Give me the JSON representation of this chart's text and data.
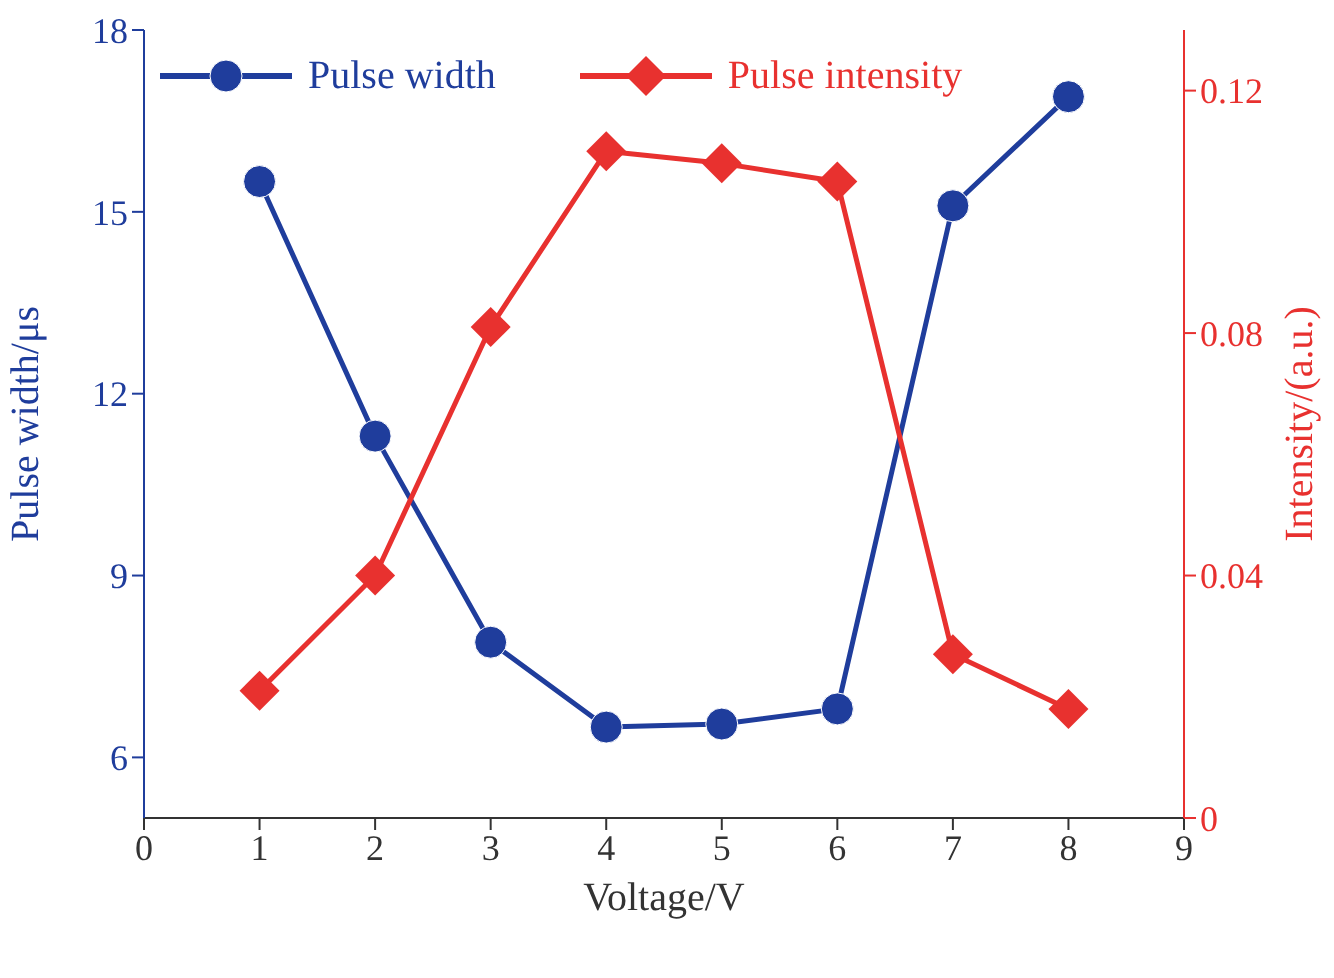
{
  "chart_data": {
    "type": "line",
    "xlabel": "Voltage/V",
    "ylabel": "Pulse width/μs",
    "y2label": "Intensity/(a.u.)",
    "x": [
      1,
      2,
      3,
      4,
      5,
      6,
      7,
      8
    ],
    "xlim": [
      0,
      9
    ],
    "xticks": [
      0,
      1,
      2,
      3,
      4,
      5,
      6,
      7,
      8,
      9
    ],
    "ylim": [
      5,
      18
    ],
    "yticks": [
      6,
      9,
      12,
      15,
      18
    ],
    "y2lim": [
      0,
      0.13
    ],
    "y2ticks": [
      0,
      0.04,
      0.08,
      0.12
    ],
    "grid": false,
    "legend": "top left",
    "line_style": "solid",
    "series": [
      {
        "name": "Pulse width",
        "color": "#1f3d9c",
        "marker": "circle",
        "values": [
          15.5,
          11.3,
          7.9,
          6.5,
          6.55,
          6.8,
          15.1,
          16.9
        ]
      },
      {
        "name": "Pulse intensity",
        "color": "#e8312f",
        "marker": "diamond",
        "axis": "y2",
        "values": [
          0.021,
          0.04,
          0.081,
          0.11,
          0.108,
          0.105,
          0.027,
          0.018
        ]
      }
    ]
  }
}
